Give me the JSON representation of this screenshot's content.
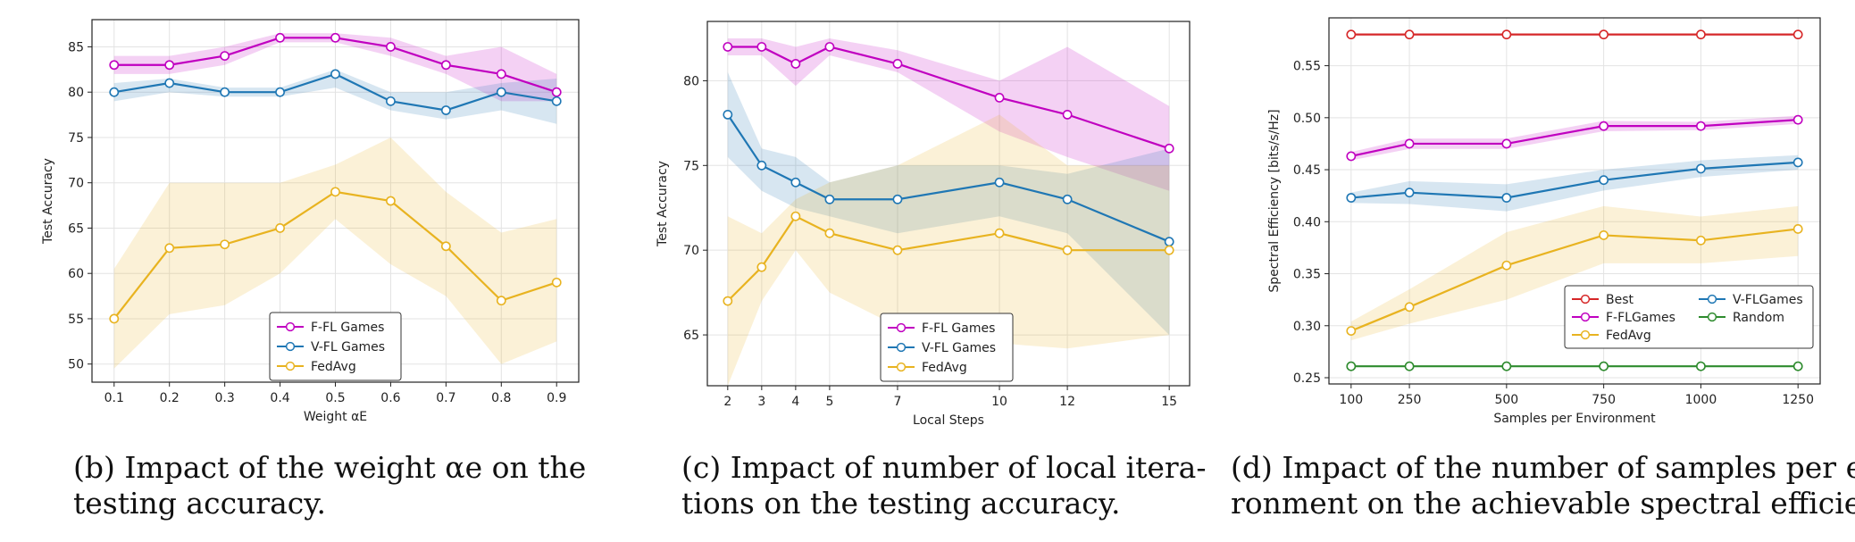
{
  "chart_data": [
    {
      "type": "line",
      "panel": "b",
      "xlabel": "Weight αE",
      "ylabel": "Test Accuracy",
      "x": [
        0.1,
        0.2,
        0.3,
        0.4,
        0.5,
        0.6,
        0.7,
        0.8,
        0.9
      ],
      "xticks": [
        0.1,
        0.2,
        0.3,
        0.4,
        0.5,
        0.6,
        0.7,
        0.8,
        0.9
      ],
      "xtick_labels": [
        "0.1",
        "0.2",
        "0.3",
        "0.4",
        "0.5",
        "0.6",
        "0.7",
        "0.8",
        "0.9"
      ],
      "xlim": [
        0.06,
        0.94
      ],
      "yticks": [
        50,
        55,
        60,
        65,
        70,
        75,
        80,
        85
      ],
      "ylim": [
        48,
        88
      ],
      "grid": true,
      "legend_position": "lower-center",
      "legend_columns": 1,
      "series": [
        {
          "name": "F-FL Games",
          "color": "#c000c0",
          "values": [
            83,
            83,
            84,
            86,
            86,
            85,
            83,
            82,
            80
          ],
          "lower": [
            82,
            82,
            83,
            85.5,
            85.5,
            84,
            82,
            79,
            79
          ],
          "upper": [
            84,
            84,
            85,
            86.5,
            86.5,
            86,
            84,
            85,
            82
          ]
        },
        {
          "name": "V-FL Games",
          "color": "#1f77b4",
          "values": [
            80,
            81,
            80,
            80,
            82,
            79,
            78,
            80,
            79
          ],
          "lower": [
            79,
            80,
            79.5,
            79.5,
            80.5,
            78,
            77,
            78,
            76.5
          ],
          "upper": [
            81,
            81.5,
            80.5,
            80.5,
            82.5,
            80,
            80,
            81,
            81.5
          ]
        },
        {
          "name": "FedAvg",
          "color": "#e8b320",
          "values": [
            55,
            62.8,
            63.2,
            65,
            69,
            68,
            63,
            57,
            59
          ],
          "lower": [
            49.5,
            55.5,
            56.5,
            60,
            66,
            61,
            57.5,
            50,
            52.5
          ],
          "upper": [
            60.5,
            70,
            70,
            70,
            72,
            75,
            69,
            64.5,
            66
          ]
        }
      ]
    },
    {
      "type": "line",
      "panel": "c",
      "xlabel": "Local Steps",
      "ylabel": "Test Accuracy",
      "x": [
        2,
        3,
        4,
        5,
        7,
        10,
        12,
        15
      ],
      "xticks": [
        2,
        3,
        4,
        5,
        7,
        10,
        12,
        15
      ],
      "xtick_labels": [
        "2",
        "3",
        "4",
        "5",
        "7",
        "10",
        "12",
        "15"
      ],
      "xlim": [
        1.4,
        15.6
      ],
      "yticks": [
        65,
        70,
        75,
        80
      ],
      "ylim": [
        62,
        83.5
      ],
      "grid": true,
      "legend_position": "lower-center",
      "legend_columns": 1,
      "series": [
        {
          "name": "F-FL Games",
          "color": "#c000c0",
          "values": [
            82,
            82,
            81,
            82,
            81,
            79,
            78,
            76
          ],
          "lower": [
            81.5,
            81.5,
            79.7,
            81.5,
            80.5,
            77,
            75.5,
            73.5
          ],
          "upper": [
            82.5,
            82.5,
            82,
            82.5,
            81.8,
            80,
            82,
            78.5
          ]
        },
        {
          "name": "V-FL Games",
          "color": "#1f77b4",
          "values": [
            78,
            75,
            74,
            73,
            73,
            74,
            73,
            70.5
          ],
          "lower": [
            75.5,
            73.5,
            72.5,
            72,
            71,
            72,
            71,
            65
          ],
          "upper": [
            80.5,
            76,
            75.5,
            74,
            75,
            75,
            74.5,
            76
          ]
        },
        {
          "name": "FedAvg",
          "color": "#e8b320",
          "values": [
            67,
            69,
            72,
            71,
            70,
            71,
            70,
            70
          ],
          "lower": [
            62,
            67,
            70,
            67.5,
            65.5,
            64.5,
            64.2,
            65
          ],
          "upper": [
            72,
            71,
            73,
            74,
            75,
            78,
            75,
            75
          ]
        }
      ]
    },
    {
      "type": "line",
      "panel": "d",
      "xlabel": "Samples per Environment",
      "ylabel": "Spectral Efficiency [bits/s/Hz]",
      "x": [
        100,
        250,
        500,
        750,
        1000,
        1250
      ],
      "xticks": [
        100,
        250,
        500,
        750,
        1000,
        1250
      ],
      "xtick_labels": [
        "100",
        "250",
        "500",
        "750",
        "1000",
        "1250"
      ],
      "xlim": [
        43,
        1307
      ],
      "yticks": [
        0.25,
        0.3,
        0.35,
        0.4,
        0.45,
        0.5,
        0.55
      ],
      "ytick_labels": [
        "0.25",
        "0.30",
        "0.35",
        "0.40",
        "0.45",
        "0.50",
        "0.55"
      ],
      "ylim": [
        0.244,
        0.596
      ],
      "grid": true,
      "legend_position": "lower-right",
      "legend_columns": 2,
      "series": [
        {
          "name": "Best",
          "color": "#d62728",
          "values": [
            0.58,
            0.58,
            0.58,
            0.58,
            0.58,
            0.58
          ]
        },
        {
          "name": "F-FLGames",
          "color": "#c000c0",
          "values": [
            0.463,
            0.475,
            0.475,
            0.492,
            0.492,
            0.498
          ],
          "lower": [
            0.459,
            0.47,
            0.47,
            0.487,
            0.488,
            0.494
          ],
          "upper": [
            0.467,
            0.48,
            0.48,
            0.497,
            0.496,
            0.502
          ]
        },
        {
          "name": "FedAvg",
          "color": "#e8b320",
          "values": [
            0.295,
            0.318,
            0.358,
            0.387,
            0.382,
            0.393
          ],
          "lower": [
            0.286,
            0.302,
            0.325,
            0.36,
            0.36,
            0.367
          ],
          "upper": [
            0.304,
            0.335,
            0.39,
            0.415,
            0.405,
            0.415
          ]
        },
        {
          "name": "V-FLGames",
          "color": "#1f77b4",
          "values": [
            0.423,
            0.428,
            0.423,
            0.44,
            0.451,
            0.457
          ],
          "lower": [
            0.418,
            0.417,
            0.41,
            0.43,
            0.443,
            0.45
          ],
          "upper": [
            0.428,
            0.439,
            0.436,
            0.45,
            0.459,
            0.464
          ]
        },
        {
          "name": "Random",
          "color": "#2e8b2e",
          "values": [
            0.261,
            0.261,
            0.261,
            0.261,
            0.261,
            0.261
          ]
        }
      ]
    }
  ],
  "captions": {
    "b": {
      "line1": "(b) Impact of the weight αe on the",
      "line2": "testing accuracy."
    },
    "c": {
      "line1": "(c) Impact of number of local itera-",
      "line2": "tions on the testing accuracy."
    },
    "d": {
      "line1": "(d) Impact of the number of samples per envi-",
      "line2": "ronment on the achievable spectral efficiency."
    }
  }
}
